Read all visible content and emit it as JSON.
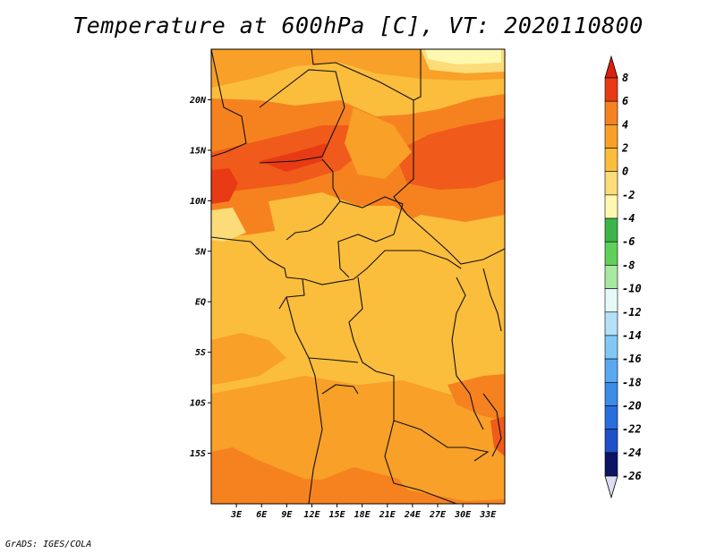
{
  "title": "Temperature at 600hPa [C], VT: 2020110800",
  "credit": "GrADS: IGES/COLA",
  "map": {
    "lon_range": [
      0,
      35
    ],
    "lat_range": [
      -20,
      25
    ],
    "lat_ticks": [
      {
        "value": 20,
        "label": "20N"
      },
      {
        "value": 15,
        "label": "15N"
      },
      {
        "value": 10,
        "label": "10N"
      },
      {
        "value": 5,
        "label": "5N"
      },
      {
        "value": 0,
        "label": "EQ"
      },
      {
        "value": -5,
        "label": "5S"
      },
      {
        "value": -10,
        "label": "10S"
      },
      {
        "value": -15,
        "label": "15S"
      }
    ],
    "lon_ticks": [
      {
        "value": 3,
        "label": "3E"
      },
      {
        "value": 6,
        "label": "6E"
      },
      {
        "value": 9,
        "label": "9E"
      },
      {
        "value": 12,
        "label": "12E"
      },
      {
        "value": 15,
        "label": "15E"
      },
      {
        "value": 18,
        "label": "18E"
      },
      {
        "value": 21,
        "label": "21E"
      },
      {
        "value": 24,
        "label": "24E"
      },
      {
        "value": 27,
        "label": "27E"
      },
      {
        "value": 30,
        "label": "30E"
      },
      {
        "value": 33,
        "label": "33E"
      }
    ]
  },
  "colorbar": {
    "levels": [
      {
        "label": "8",
        "color": "#e83a14"
      },
      {
        "label": "6",
        "color": "#f05a1a"
      },
      {
        "label": "4",
        "color": "#f6821f"
      },
      {
        "label": "2",
        "color": "#f8a028"
      },
      {
        "label": "0",
        "color": "#fbbd3c"
      },
      {
        "label": "-2",
        "color": "#fcdc78"
      },
      {
        "label": "-4",
        "color": "#fff8b0"
      },
      {
        "label": "-6",
        "color": "#3cb44a"
      },
      {
        "label": "-8",
        "color": "#5fd05a"
      },
      {
        "label": "-10",
        "color": "#a8e8a0"
      },
      {
        "label": "-12",
        "color": "#e6f8f8"
      },
      {
        "label": "-14",
        "color": "#b4e0f8"
      },
      {
        "label": "-16",
        "color": "#82c8f4"
      },
      {
        "label": "-18",
        "color": "#5aa8f0"
      },
      {
        "label": "-20",
        "color": "#3c8ce8"
      },
      {
        "label": "-22",
        "color": "#286ede"
      },
      {
        "label": "-24",
        "color": "#1e50c8"
      },
      {
        "label": "-26",
        "color": "#1e28a0"
      }
    ],
    "top_arrow_color": "#d82010",
    "bottom_arrow_color": "#dcdcf4",
    "extra_bottom_color": "#0c1464"
  }
}
